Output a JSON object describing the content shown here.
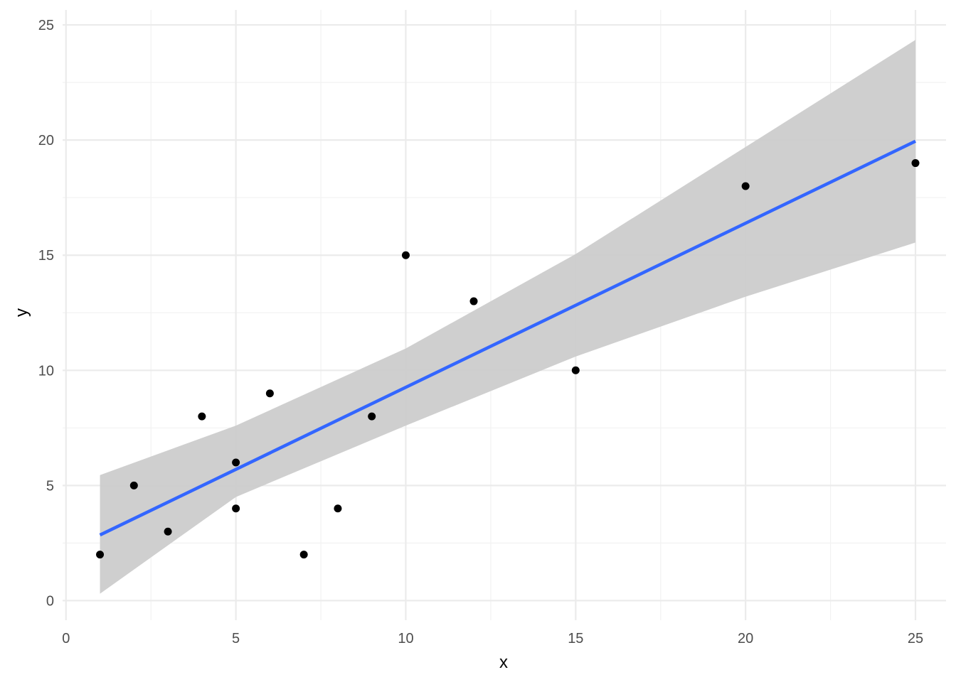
{
  "chart_data": {
    "type": "scatter",
    "title": "",
    "xlabel": "x",
    "ylabel": "y",
    "xlim": [
      -0.1,
      25.9
    ],
    "ylim": [
      -0.85,
      25.65
    ],
    "x_ticks": [
      0,
      5,
      10,
      15,
      20,
      25
    ],
    "y_ticks": [
      0,
      5,
      10,
      15,
      20,
      25
    ],
    "x_tick_labels": [
      "0",
      "5",
      "10",
      "15",
      "20",
      "25"
    ],
    "y_tick_labels": [
      "0",
      "5",
      "10",
      "15",
      "20",
      "25"
    ],
    "grid": true,
    "points": {
      "x": [
        1,
        2,
        3,
        4,
        5,
        5,
        6,
        7,
        8,
        9,
        10,
        12,
        15,
        20,
        25
      ],
      "y": [
        2,
        5,
        3,
        8,
        6,
        4,
        9,
        2,
        4,
        8,
        15,
        13,
        10,
        18,
        19
      ]
    },
    "fit_line": {
      "method": "linear regression",
      "x": [
        1,
        25
      ],
      "y": [
        2.85,
        19.95
      ]
    },
    "confidence_band": {
      "x": [
        1,
        5,
        10,
        15,
        20,
        25
      ],
      "lower": [
        0.3,
        4.5,
        7.6,
        10.6,
        13.2,
        15.55
      ],
      "upper": [
        5.45,
        7.6,
        10.95,
        15.05,
        19.7,
        24.35
      ]
    },
    "colors": {
      "points": "#000000",
      "line": "#3366ff",
      "band": "#cccccc",
      "grid_major": "#ebebeb",
      "grid_minor": "#f2f2f2"
    }
  }
}
